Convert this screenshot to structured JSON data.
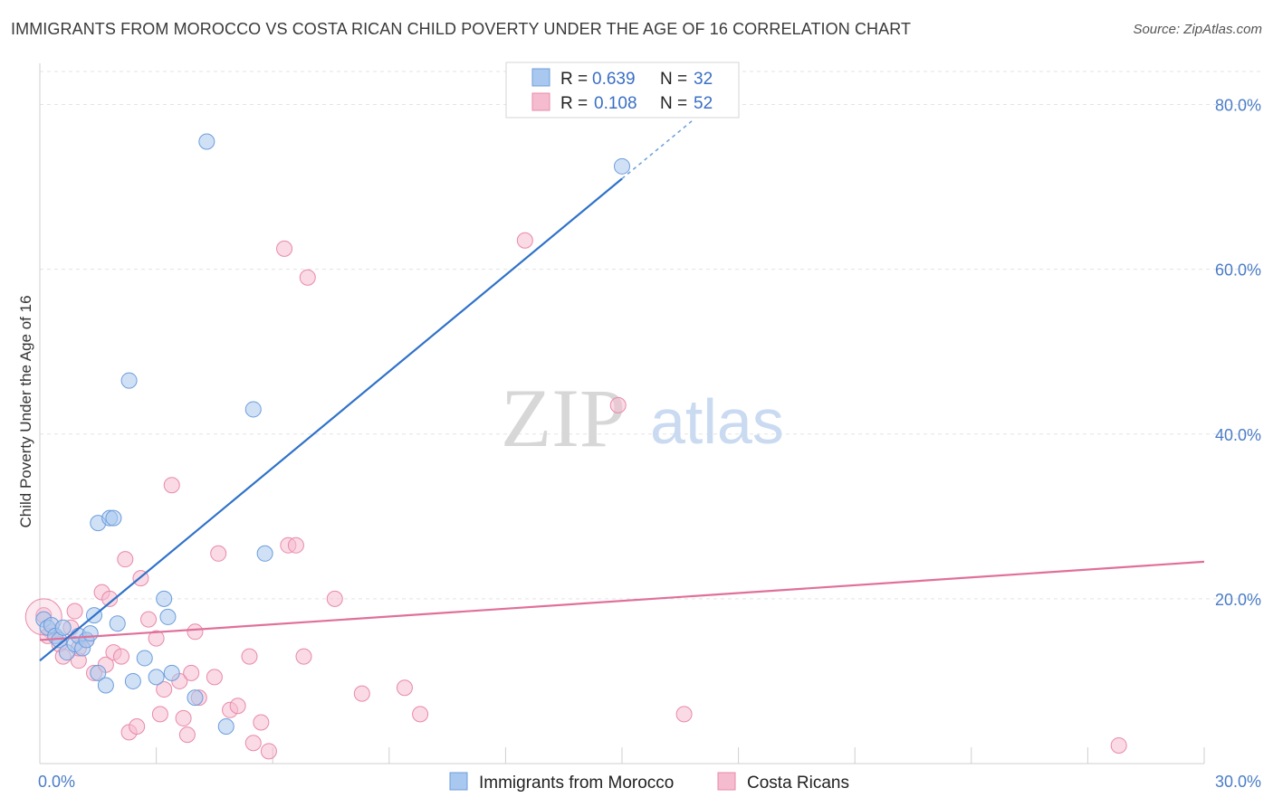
{
  "title": "IMMIGRANTS FROM MOROCCO VS COSTA RICAN CHILD POVERTY UNDER THE AGE OF 16 CORRELATION CHART",
  "source": "Source: ZipAtlas.com",
  "watermark": {
    "zip": "ZIP",
    "atlas": "atlas"
  },
  "colors": {
    "blue_fill": "#a9c8ef",
    "blue_stroke": "#6c9ddc",
    "blue_line": "#2f72c9",
    "pink_fill": "#f5bcd0",
    "pink_stroke": "#e88aa8",
    "pink_line": "#e0709a",
    "grid": "#e3e3e3",
    "tick_text": "#4a7cc7"
  },
  "legend": {
    "rows": [
      {
        "r_label": "R =",
        "r_value": "0.639",
        "n_label": "N =",
        "n_value": "32"
      },
      {
        "r_label": "R =",
        "r_value": "0.108",
        "n_label": "N =",
        "n_value": "52"
      }
    ]
  },
  "chart_data": {
    "type": "scatter",
    "ylabel": "Child Poverty Under the Age of 16",
    "xlim": [
      0,
      30
    ],
    "ylim": [
      0,
      85
    ],
    "x_tick_labels": [
      "0.0%",
      "30.0%"
    ],
    "y_ticks": [
      20,
      40,
      60,
      80
    ],
    "y_tick_labels": [
      "20.0%",
      "40.0%",
      "60.0%",
      "80.0%"
    ],
    "grid": true,
    "legend_position": "top-center",
    "series": [
      {
        "name": "Immigrants from Morocco",
        "color": "#a9c8ef",
        "trend": {
          "x0": 0,
          "y0": 12.5,
          "x1": 15,
          "y1": 71
        },
        "trend_dashed_ext": {
          "x0": 15,
          "y0": 71,
          "x1": 16.8,
          "y1": 78
        },
        "points": [
          [
            0.1,
            17.5
          ],
          [
            0.2,
            16.5
          ],
          [
            0.3,
            16.8
          ],
          [
            0.4,
            15.5
          ],
          [
            0.5,
            15.0
          ],
          [
            0.6,
            16.5
          ],
          [
            0.7,
            13.5
          ],
          [
            0.9,
            14.5
          ],
          [
            1.0,
            15.5
          ],
          [
            1.1,
            14.0
          ],
          [
            1.2,
            15.0
          ],
          [
            1.3,
            15.8
          ],
          [
            1.4,
            18.0
          ],
          [
            1.5,
            11.0
          ],
          [
            1.7,
            9.5
          ],
          [
            1.5,
            29.2
          ],
          [
            1.8,
            29.8
          ],
          [
            1.9,
            29.8
          ],
          [
            2.0,
            17.0
          ],
          [
            2.3,
            46.5
          ],
          [
            2.4,
            10.0
          ],
          [
            2.7,
            12.8
          ],
          [
            3.0,
            10.5
          ],
          [
            3.2,
            20.0
          ],
          [
            3.3,
            17.8
          ],
          [
            3.4,
            11.0
          ],
          [
            4.3,
            75.5
          ],
          [
            4.8,
            4.5
          ],
          [
            5.5,
            43.0
          ],
          [
            5.8,
            25.5
          ],
          [
            15.0,
            72.5
          ],
          [
            4.0,
            8.0
          ]
        ]
      },
      {
        "name": "Costa Ricans",
        "color": "#f5bcd0",
        "trend": {
          "x0": 0,
          "y0": 15.0,
          "x1": 30,
          "y1": 24.5
        },
        "points": [
          [
            0.1,
            18.0
          ],
          [
            0.3,
            16.0
          ],
          [
            0.5,
            14.5
          ],
          [
            0.6,
            13.0
          ],
          [
            0.8,
            16.5
          ],
          [
            0.9,
            18.5
          ],
          [
            1.0,
            12.5
          ],
          [
            1.2,
            15.0
          ],
          [
            1.4,
            11.0
          ],
          [
            1.6,
            20.8
          ],
          [
            1.7,
            12.0
          ],
          [
            1.8,
            20.0
          ],
          [
            1.9,
            13.5
          ],
          [
            2.1,
            13.0
          ],
          [
            2.2,
            24.8
          ],
          [
            2.3,
            3.8
          ],
          [
            2.5,
            4.5
          ],
          [
            2.6,
            22.5
          ],
          [
            2.8,
            17.5
          ],
          [
            3.0,
            15.2
          ],
          [
            3.1,
            6.0
          ],
          [
            3.2,
            9.0
          ],
          [
            3.4,
            33.8
          ],
          [
            3.6,
            10.0
          ],
          [
            3.7,
            5.5
          ],
          [
            3.8,
            3.5
          ],
          [
            3.9,
            11.0
          ],
          [
            4.0,
            16.0
          ],
          [
            4.1,
            8.0
          ],
          [
            4.5,
            10.5
          ],
          [
            4.6,
            25.5
          ],
          [
            4.9,
            6.5
          ],
          [
            5.1,
            7.0
          ],
          [
            5.4,
            13.0
          ],
          [
            5.5,
            2.5
          ],
          [
            5.7,
            5.0
          ],
          [
            5.9,
            1.5
          ],
          [
            6.3,
            62.5
          ],
          [
            6.4,
            26.5
          ],
          [
            6.6,
            26.5
          ],
          [
            6.8,
            13.0
          ],
          [
            6.9,
            59.0
          ],
          [
            7.6,
            20.0
          ],
          [
            8.3,
            8.5
          ],
          [
            9.4,
            9.2
          ],
          [
            9.8,
            6.0
          ],
          [
            12.5,
            63.5
          ],
          [
            14.9,
            43.5
          ],
          [
            16.6,
            6.0
          ],
          [
            27.8,
            2.2
          ],
          [
            0.2,
            15.5
          ],
          [
            1.0,
            14.0
          ]
        ]
      }
    ]
  }
}
